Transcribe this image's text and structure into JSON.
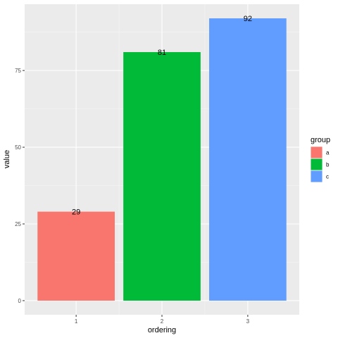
{
  "chart_data": {
    "type": "bar",
    "categories": [
      "1",
      "2",
      "3"
    ],
    "values": [
      29,
      81,
      92
    ],
    "groups": [
      "a",
      "b",
      "c"
    ],
    "xlabel": "ordering",
    "ylabel": "value",
    "yticks": [
      0,
      25,
      50,
      75
    ],
    "ylim": [
      -4.6,
      96.6
    ],
    "grid": true,
    "legend": {
      "title": "group",
      "placement": "right",
      "entries": [
        {
          "label": "a",
          "color": "#F8766D"
        },
        {
          "label": "b",
          "color": "#00BA38"
        },
        {
          "label": "c",
          "color": "#619CFF"
        }
      ]
    },
    "colors": {
      "panel_background": "#EBEBEB",
      "grid_major": "#FFFFFF",
      "grid_minor": "#F5F5F5"
    }
  }
}
